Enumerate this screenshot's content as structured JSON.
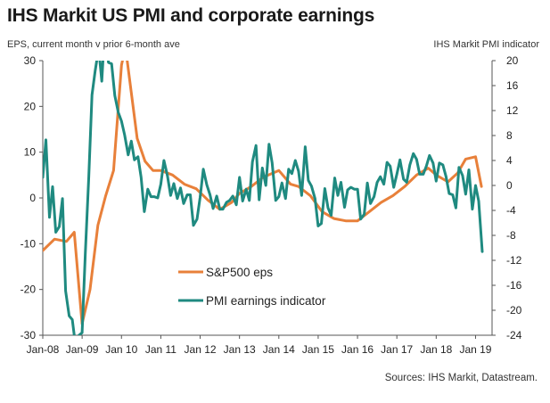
{
  "chart_data": {
    "type": "line",
    "title": "IHS Markit US PMI and corporate earnings",
    "left_axis_label": "EPS, current month v prior 6-month ave",
    "right_axis_label": "IHS Markit PMI indicator",
    "source": "Sources: IHS Markit, Datastream.",
    "x_tick_labels": [
      "Jan-08",
      "Jan-09",
      "Jan 10",
      "Jan 11",
      "Jan 12",
      "Jan 13",
      "Jan 14",
      "Jan 15",
      "Jan 16",
      "Jan 17",
      "Jan 18",
      "Jan 19"
    ],
    "left_ylim": [
      -30,
      30
    ],
    "left_ticks": [
      -30,
      -20,
      -10,
      0,
      10,
      20,
      30
    ],
    "right_ylim": [
      -24,
      20
    ],
    "right_ticks": [
      -24,
      -20,
      -16,
      -12,
      -8,
      -4,
      0,
      4,
      8,
      12,
      16,
      20
    ],
    "grid": false,
    "legend_position": "bottom-center",
    "colors": {
      "eps": "#E8803A",
      "pmi": "#1F8A80"
    },
    "series": [
      {
        "name": "S&P500 eps",
        "axis": "left",
        "x": [
          2008.0,
          2008.3,
          2008.6,
          2008.8,
          2009.0,
          2009.2,
          2009.4,
          2009.6,
          2009.8,
          2010.0,
          2010.1,
          2010.25,
          2010.4,
          2010.6,
          2010.8,
          2011.0,
          2011.3,
          2011.6,
          2011.9,
          2012.2,
          2012.5,
          2012.8,
          2013.0,
          2013.3,
          2013.6,
          2014.0,
          2014.3,
          2014.5,
          2014.8,
          2015.1,
          2015.4,
          2015.7,
          2016.0,
          2016.3,
          2016.6,
          2016.9,
          2017.2,
          2017.5,
          2017.8,
          2018.0,
          2018.3,
          2018.55,
          2018.75,
          2019.0,
          2019.15
        ],
        "values": [
          -11.5,
          -9,
          -9.5,
          -7.5,
          -27.5,
          -20,
          -6,
          0.5,
          6,
          29,
          33,
          23,
          13,
          8,
          6,
          6,
          5,
          3,
          2,
          -0.5,
          -2.5,
          -1,
          1,
          2.5,
          4.5,
          6,
          3,
          2.5,
          0.5,
          -3,
          -4.5,
          -5,
          -5,
          -3,
          -1,
          0.5,
          2.5,
          5,
          6.5,
          5,
          3.5,
          5.5,
          8.5,
          9,
          2.5
        ]
      },
      {
        "name": "PMI earnings indicator",
        "axis": "right",
        "x": [
          2008.0,
          2008.08,
          2008.17,
          2008.25,
          2008.33,
          2008.42,
          2008.5,
          2008.58,
          2008.67,
          2008.75,
          2008.83,
          2008.92,
          2009.0,
          2009.08,
          2009.17,
          2009.25,
          2009.33,
          2009.42,
          2009.5,
          2009.58,
          2009.67,
          2009.75,
          2009.83,
          2009.92,
          2010.0,
          2010.08,
          2010.17,
          2010.25,
          2010.33,
          2010.42,
          2010.5,
          2010.58,
          2010.67,
          2010.75,
          2010.83,
          2010.92,
          2011.0,
          2011.08,
          2011.17,
          2011.25,
          2011.33,
          2011.42,
          2011.5,
          2011.58,
          2011.67,
          2011.75,
          2011.83,
          2011.92,
          2012.0,
          2012.08,
          2012.17,
          2012.25,
          2012.33,
          2012.42,
          2012.5,
          2012.58,
          2012.67,
          2012.75,
          2012.83,
          2012.92,
          2013.0,
          2013.08,
          2013.17,
          2013.25,
          2013.33,
          2013.42,
          2013.5,
          2013.58,
          2013.67,
          2013.75,
          2013.83,
          2013.92,
          2014.0,
          2014.08,
          2014.17,
          2014.25,
          2014.33,
          2014.42,
          2014.5,
          2014.58,
          2014.67,
          2014.75,
          2014.83,
          2014.92,
          2015.0,
          2015.08,
          2015.17,
          2015.25,
          2015.33,
          2015.42,
          2015.5,
          2015.58,
          2015.67,
          2015.75,
          2015.83,
          2015.92,
          2016.0,
          2016.08,
          2016.17,
          2016.25,
          2016.33,
          2016.42,
          2016.5,
          2016.58,
          2016.67,
          2016.75,
          2016.83,
          2016.92,
          2017.0,
          2017.08,
          2017.17,
          2017.25,
          2017.33,
          2017.42,
          2017.5,
          2017.58,
          2017.67,
          2017.75,
          2017.83,
          2017.92,
          2018.0,
          2018.08,
          2018.17,
          2018.25,
          2018.33,
          2018.42,
          2018.5,
          2018.58,
          2018.67,
          2018.75,
          2018.83,
          2018.92,
          2019.0,
          2019.08,
          2019.17
        ],
        "values": [
          1.3,
          7.3,
          -5.1,
          -0.2,
          -7.5,
          -6.6,
          -2.1,
          -16.9,
          -20.9,
          -21.5,
          -25.5,
          -24,
          -23.6,
          -10.9,
          1.4,
          14.5,
          18.3,
          22,
          16.7,
          25.6,
          19.7,
          19.5,
          14.4,
          11.7,
          10.3,
          8.1,
          4.9,
          7.1,
          4.1,
          4.6,
          1.3,
          -4.2,
          -0.6,
          -1.8,
          -1.8,
          -2,
          0.2,
          4,
          1.5,
          -1.6,
          0.3,
          -2.1,
          -0.4,
          -2.9,
          -1.5,
          -1.5,
          -6.4,
          -5.4,
          -1.9,
          2.6,
          0.1,
          -1.5,
          -3.7,
          -1.7,
          -3.8,
          -3.8,
          -2.7,
          -2.4,
          -1.7,
          -3.1,
          1.3,
          -2.5,
          -0.6,
          -2.4,
          3.8,
          6.4,
          -2.3,
          2.8,
          0,
          6.6,
          3.6,
          -2.4,
          -1.8,
          0.4,
          -2.1,
          2.6,
          1.9,
          4,
          2.3,
          -1.6,
          6.2,
          0.8,
          -0.1,
          -2.1,
          -6.5,
          -6.1,
          -0.5,
          -3.6,
          -4.8,
          1.2,
          -1.6,
          0.5,
          -3.5,
          -0.7,
          -0.3,
          -0.6,
          -0.6,
          -5.4,
          -4.6,
          0.4,
          -2.9,
          -1.8,
          0.5,
          1.4,
          0.2,
          3.7,
          3.1,
          -0.3,
          1.8,
          4.1,
          1,
          0.5,
          3.3,
          5.1,
          4.2,
          1.8,
          1.8,
          3.1,
          4.8,
          3.6,
          0.7,
          3.6,
          3.3,
          1.4,
          -1.3,
          -1.5,
          -3.6,
          2.9,
          1.6,
          -1.4,
          2.5,
          -3.8,
          0,
          -2.5,
          -10.6
        ]
      }
    ]
  }
}
